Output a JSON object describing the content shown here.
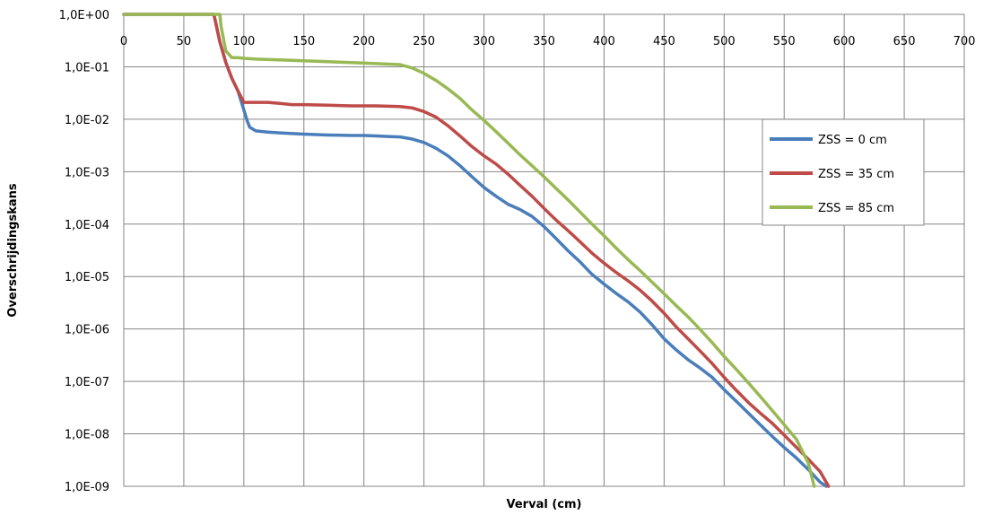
{
  "chart_data": {
    "type": "line",
    "title": "",
    "xlabel": "Verval (cm)",
    "ylabel": "Overschrijdingskans",
    "xlim": [
      0,
      700
    ],
    "ylim": [
      1e-09,
      1
    ],
    "yscale": "log",
    "grid": true,
    "legend_position": "right",
    "x_ticks": [
      "0",
      "50",
      "100",
      "150",
      "200",
      "250",
      "300",
      "350",
      "400",
      "450",
      "500",
      "550",
      "600",
      "650",
      "700"
    ],
    "x_tick_values": [
      0,
      50,
      100,
      150,
      200,
      250,
      300,
      350,
      400,
      450,
      500,
      550,
      600,
      650,
      700
    ],
    "y_ticks": [
      "1,0E+00",
      "1,0E-01",
      "1,0E-02",
      "1,0E-03",
      "1,0E-04",
      "1,0E-05",
      "1,0E-06",
      "1,0E-07",
      "1,0E-08",
      "1,0E-09"
    ],
    "y_tick_values": [
      1,
      0.1,
      0.01,
      0.001,
      0.0001,
      1e-05,
      1e-06,
      1e-07,
      1e-08,
      1e-09
    ],
    "series": [
      {
        "name": "ZSS = 0 cm",
        "color": "#4a7ebb",
        "x": [
          0,
          75,
          76,
          80,
          85,
          90,
          95,
          100,
          103,
          105,
          110,
          120,
          130,
          150,
          170,
          190,
          200,
          210,
          220,
          230,
          240,
          250,
          260,
          270,
          280,
          290,
          300,
          310,
          320,
          330,
          340,
          350,
          360,
          370,
          380,
          390,
          400,
          410,
          420,
          430,
          440,
          450,
          460,
          470,
          480,
          490,
          500,
          510,
          520,
          530,
          540,
          550,
          560,
          570,
          580,
          585
        ],
        "y": [
          1,
          1,
          0.8,
          0.3,
          0.12,
          0.06,
          0.035,
          0.015,
          0.009,
          0.007,
          0.006,
          0.0057,
          0.0055,
          0.0052,
          0.005,
          0.0049,
          0.0049,
          0.0048,
          0.0047,
          0.0046,
          0.0042,
          0.0036,
          0.0028,
          0.002,
          0.0013,
          0.0008,
          0.0005,
          0.00034,
          0.00024,
          0.00019,
          0.00014,
          9e-05,
          5.3e-05,
          3.1e-05,
          1.9e-05,
          1.1e-05,
          7.2e-06,
          4.8e-06,
          3.3e-06,
          2.1e-06,
          1.2e-06,
          6.5e-07,
          4e-07,
          2.6e-07,
          1.8e-07,
          1.2e-07,
          7e-08,
          4.2e-08,
          2.5e-08,
          1.5e-08,
          9e-09,
          5.5e-09,
          3.5e-09,
          2.1e-09,
          1.2e-09,
          1e-09
        ]
      },
      {
        "name": "ZSS = 35 cm",
        "color": "#be4b48",
        "x": [
          0,
          75,
          76,
          80,
          85,
          90,
          95,
          100,
          110,
          120,
          130,
          140,
          150,
          170,
          190,
          210,
          230,
          240,
          250,
          260,
          270,
          280,
          290,
          300,
          310,
          320,
          330,
          340,
          350,
          360,
          370,
          380,
          390,
          400,
          410,
          420,
          430,
          440,
          450,
          460,
          470,
          480,
          490,
          500,
          510,
          520,
          530,
          540,
          550,
          560,
          570,
          580,
          587
        ],
        "y": [
          1,
          1,
          0.8,
          0.3,
          0.12,
          0.06,
          0.035,
          0.021,
          0.021,
          0.021,
          0.02,
          0.019,
          0.019,
          0.0185,
          0.018,
          0.018,
          0.0175,
          0.0165,
          0.014,
          0.011,
          0.0075,
          0.0048,
          0.003,
          0.002,
          0.0014,
          0.0009,
          0.00055,
          0.00034,
          0.0002,
          0.00012,
          7.5e-05,
          4.6e-05,
          2.8e-05,
          1.8e-05,
          1.2e-05,
          8.3e-06,
          5.5e-06,
          3.4e-06,
          2e-06,
          1.1e-06,
          6.5e-07,
          3.8e-07,
          2.2e-07,
          1.2e-07,
          6.8e-08,
          4e-08,
          2.5e-08,
          1.6e-08,
          9.5e-09,
          5.6e-09,
          3.3e-09,
          1.9e-09,
          1e-09
        ]
      },
      {
        "name": "ZSS = 85 cm",
        "color": "#98b954",
        "x": [
          0,
          80,
          81,
          85,
          90,
          95,
          100,
          110,
          130,
          150,
          170,
          190,
          210,
          230,
          240,
          250,
          260,
          270,
          280,
          290,
          300,
          310,
          320,
          330,
          340,
          350,
          360,
          370,
          380,
          390,
          400,
          410,
          420,
          430,
          440,
          450,
          460,
          470,
          480,
          490,
          500,
          510,
          520,
          530,
          540,
          550,
          560,
          570,
          575
        ],
        "y": [
          1,
          1,
          0.6,
          0.2,
          0.15,
          0.15,
          0.145,
          0.14,
          0.135,
          0.13,
          0.125,
          0.12,
          0.115,
          0.11,
          0.095,
          0.075,
          0.055,
          0.038,
          0.025,
          0.015,
          0.0095,
          0.0058,
          0.0035,
          0.0021,
          0.0013,
          0.0008,
          0.00048,
          0.00029,
          0.00017,
          0.0001,
          6e-05,
          3.5e-05,
          2.1e-05,
          1.3e-05,
          7.8e-06,
          4.7e-06,
          2.8e-06,
          1.7e-06,
          9.8e-07,
          5.5e-07,
          3e-07,
          1.7e-07,
          9.5e-08,
          5.2e-08,
          2.8e-08,
          1.5e-08,
          8e-09,
          2.8e-09,
          1e-09
        ]
      }
    ]
  }
}
